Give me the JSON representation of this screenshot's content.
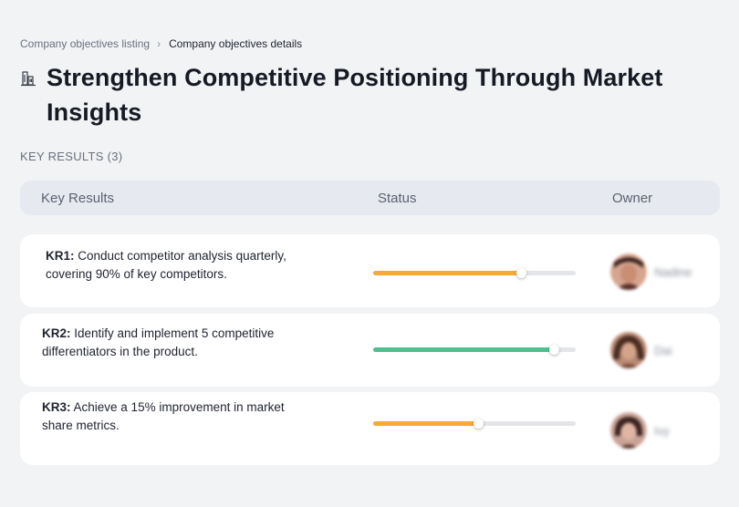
{
  "breadcrumb": {
    "parent": "Company objectives listing",
    "current": "Company objectives details"
  },
  "objective": {
    "title": "Strengthen Competitive Positioning Through Market Insights",
    "icon": "buildings-icon"
  },
  "key_results_label": "KEY RESULTS (3)",
  "table": {
    "headers": {
      "key_results": "Key Results",
      "status": "Status",
      "owner": "Owner"
    },
    "rows": [
      {
        "code": "KR1:",
        "text": " Conduct competitor analysis quarterly, covering 90% of key competitors.",
        "progress": 0.73,
        "progress_color": "#f8a936",
        "owner_name": "Nadine"
      },
      {
        "code": "KR2:",
        "text": " Identify and implement 5 competitive differentiators in the product.",
        "progress": 0.89,
        "progress_color": "#4fc08d",
        "owner_name": "Dai"
      },
      {
        "code": "KR3:",
        "text": " Achieve a 15% improvement in market share metrics.",
        "progress": 0.52,
        "progress_color": "#f8a936",
        "owner_name": "Ivy"
      }
    ]
  },
  "colors": {
    "background": "#f2f3f5",
    "header_bg": "#e6e9f0",
    "card_bg": "#ffffff",
    "orange": "#f8a936",
    "green": "#4fc08d"
  }
}
